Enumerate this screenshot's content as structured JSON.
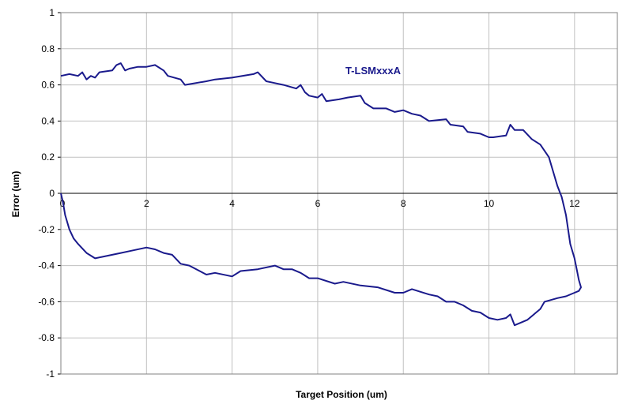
{
  "chart_data": {
    "type": "line",
    "title": "",
    "xlabel": "Target Position (um)",
    "ylabel": "Error (um)",
    "xlim": [
      0,
      13
    ],
    "ylim": [
      -1,
      1
    ],
    "x_ticks": [
      "0",
      "2",
      "4",
      "6",
      "8",
      "10",
      "12"
    ],
    "y_ticks": [
      "-1",
      "-0.8",
      "-0.6",
      "-0.4",
      "-0.2",
      "0",
      "0.2",
      "0.4",
      "0.6",
      "0.8",
      "1"
    ],
    "grid": true,
    "legend": "none",
    "annotation": "T-LSMxxxA",
    "series_color": "#1a1a8c",
    "grid_color": "#c0c0c0",
    "series": [
      {
        "name": "T-LSMxxxA",
        "x": [
          0,
          0.2,
          0.4,
          0.5,
          0.6,
          0.7,
          0.8,
          0.9,
          1.2,
          1.3,
          1.4,
          1.5,
          1.6,
          1.8,
          2.0,
          2.2,
          2.4,
          2.5,
          2.8,
          2.9,
          3.4,
          3.6,
          4.0,
          4.5,
          4.6,
          4.8,
          5.0,
          5.2,
          5.5,
          5.6,
          5.7,
          5.8,
          6.0,
          6.1,
          6.2,
          6.5,
          6.7,
          7.0,
          7.1,
          7.3,
          7.6,
          7.8,
          8.0,
          8.2,
          8.4,
          8.6,
          9.0,
          9.1,
          9.4,
          9.5,
          9.8,
          10.0,
          10.1,
          10.4,
          10.5,
          10.6,
          10.8,
          11.0,
          11.2,
          11.4,
          11.5,
          11.6,
          11.7,
          11.8,
          11.85,
          11.9,
          12.0,
          12.05,
          12.1,
          12.15,
          12.1,
          12.0,
          11.8,
          11.6,
          11.3,
          11.2,
          11.1,
          11.0,
          10.9,
          10.7,
          10.6,
          10.5,
          10.4,
          10.2,
          10.0,
          9.8,
          9.6,
          9.4,
          9.2,
          9.0,
          8.8,
          8.6,
          8.2,
          8.0,
          7.8,
          7.4,
          7.0,
          6.6,
          6.4,
          6.0,
          5.8,
          5.6,
          5.4,
          5.2,
          5.0,
          4.6,
          4.2,
          4.0,
          3.6,
          3.4,
          3.0,
          2.8,
          2.6,
          2.4,
          2.2,
          2.0,
          1.6,
          1.4,
          1.0,
          0.8,
          0.6,
          0.4,
          0.3,
          0.2,
          0.1,
          0.05,
          0
        ],
        "y": [
          0.65,
          0.66,
          0.65,
          0.67,
          0.63,
          0.65,
          0.64,
          0.67,
          0.68,
          0.71,
          0.72,
          0.68,
          0.69,
          0.7,
          0.7,
          0.71,
          0.68,
          0.65,
          0.63,
          0.6,
          0.62,
          0.63,
          0.64,
          0.66,
          0.67,
          0.62,
          0.61,
          0.6,
          0.58,
          0.6,
          0.56,
          0.54,
          0.53,
          0.55,
          0.51,
          0.52,
          0.53,
          0.54,
          0.5,
          0.47,
          0.47,
          0.45,
          0.46,
          0.44,
          0.43,
          0.4,
          0.41,
          0.38,
          0.37,
          0.34,
          0.33,
          0.31,
          0.31,
          0.32,
          0.38,
          0.35,
          0.35,
          0.3,
          0.27,
          0.2,
          0.12,
          0.04,
          -0.02,
          -0.12,
          -0.2,
          -0.28,
          -0.36,
          -0.42,
          -0.48,
          -0.52,
          -0.54,
          -0.55,
          -0.57,
          -0.58,
          -0.6,
          -0.64,
          -0.66,
          -0.68,
          -0.7,
          -0.72,
          -0.73,
          -0.67,
          -0.69,
          -0.7,
          -0.69,
          -0.66,
          -0.65,
          -0.62,
          -0.6,
          -0.6,
          -0.57,
          -0.56,
          -0.53,
          -0.55,
          -0.55,
          -0.52,
          -0.51,
          -0.49,
          -0.5,
          -0.47,
          -0.47,
          -0.44,
          -0.42,
          -0.42,
          -0.4,
          -0.42,
          -0.43,
          -0.46,
          -0.44,
          -0.45,
          -0.4,
          -0.39,
          -0.34,
          -0.33,
          -0.31,
          -0.3,
          -0.32,
          -0.33,
          -0.35,
          -0.36,
          -0.33,
          -0.28,
          -0.25,
          -0.2,
          -0.12,
          -0.05,
          0
        ]
      }
    ]
  }
}
